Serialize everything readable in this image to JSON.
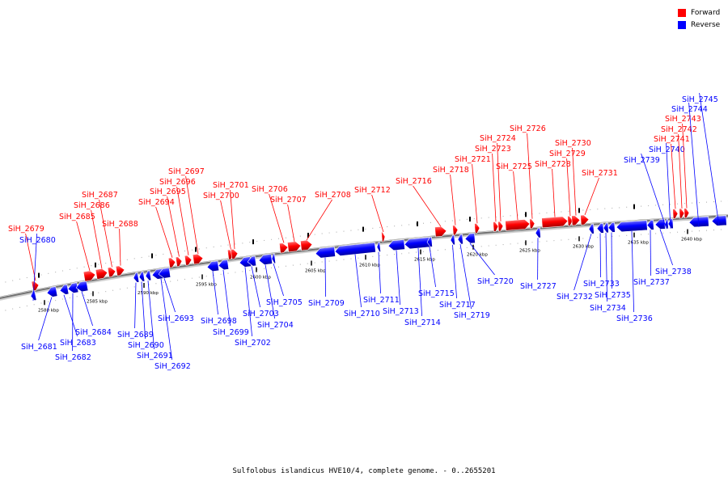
{
  "legend": {
    "forward_label": "Forward",
    "reverse_label": "Reverse",
    "forward_color": "#ff0000",
    "reverse_color": "#0000ff"
  },
  "caption": "Sulfolobus islandicus HVE10/4, complete genome. - 0..2655201",
  "ticks": [
    {
      "kbp": 2580,
      "label": "2580 kbp"
    },
    {
      "kbp": 2585,
      "label": "2585 kbp"
    },
    {
      "kbp": 2590,
      "label": "2590 kbp"
    },
    {
      "kbp": 2595,
      "label": "2595 kbp"
    },
    {
      "kbp": 2600,
      "label": "2600 kbp"
    },
    {
      "kbp": 2605,
      "label": "2605 kbp"
    },
    {
      "kbp": 2610,
      "label": "2610 kbp"
    },
    {
      "kbp": 2615,
      "label": "2615 kbp"
    },
    {
      "kbp": 2620,
      "label": "2620 kbp"
    },
    {
      "kbp": 2625,
      "label": "2625 kbp"
    },
    {
      "kbp": 2630,
      "label": "2630 kbp"
    },
    {
      "kbp": 2635,
      "label": "2635 kbp"
    },
    {
      "kbp": 2640,
      "label": "2640 kbp"
    }
  ],
  "genes": [
    {
      "name": "SiH_2679",
      "strand": "forward"
    },
    {
      "name": "SiH_2680",
      "strand": "reverse"
    },
    {
      "name": "SiH_2681",
      "strand": "reverse"
    },
    {
      "name": "SiH_2682",
      "strand": "reverse"
    },
    {
      "name": "SiH_2683",
      "strand": "reverse"
    },
    {
      "name": "SiH_2684",
      "strand": "reverse"
    },
    {
      "name": "SiH_2685",
      "strand": "forward"
    },
    {
      "name": "SiH_2686",
      "strand": "forward"
    },
    {
      "name": "SiH_2687",
      "strand": "forward"
    },
    {
      "name": "SiH_2688",
      "strand": "forward"
    },
    {
      "name": "SiH_2689",
      "strand": "reverse"
    },
    {
      "name": "SiH_2690",
      "strand": "reverse"
    },
    {
      "name": "SiH_2691",
      "strand": "reverse"
    },
    {
      "name": "SiH_2692",
      "strand": "reverse"
    },
    {
      "name": "SiH_2693",
      "strand": "reverse"
    },
    {
      "name": "SiH_2694",
      "strand": "forward"
    },
    {
      "name": "SiH_2695",
      "strand": "forward"
    },
    {
      "name": "SiH_2696",
      "strand": "forward"
    },
    {
      "name": "SiH_2697",
      "strand": "forward"
    },
    {
      "name": "SiH_2698",
      "strand": "reverse"
    },
    {
      "name": "SiH_2699",
      "strand": "reverse"
    },
    {
      "name": "SiH_2700",
      "strand": "forward"
    },
    {
      "name": "SiH_2701",
      "strand": "forward"
    },
    {
      "name": "SiH_2702",
      "strand": "reverse"
    },
    {
      "name": "SiH_2703",
      "strand": "reverse"
    },
    {
      "name": "SiH_2704",
      "strand": "reverse"
    },
    {
      "name": "SiH_2705",
      "strand": "reverse"
    },
    {
      "name": "SiH_2706",
      "strand": "forward"
    },
    {
      "name": "SiH_2707",
      "strand": "forward"
    },
    {
      "name": "SiH_2708",
      "strand": "forward"
    },
    {
      "name": "SiH_2709",
      "strand": "reverse"
    },
    {
      "name": "SiH_2710",
      "strand": "reverse"
    },
    {
      "name": "SiH_2711",
      "strand": "reverse"
    },
    {
      "name": "SiH_2712",
      "strand": "forward"
    },
    {
      "name": "SiH_2713",
      "strand": "reverse"
    },
    {
      "name": "SiH_2714",
      "strand": "reverse"
    },
    {
      "name": "SiH_2715",
      "strand": "reverse"
    },
    {
      "name": "SiH_2716",
      "strand": "forward"
    },
    {
      "name": "SiH_2717",
      "strand": "reverse"
    },
    {
      "name": "SiH_2718",
      "strand": "forward"
    },
    {
      "name": "SiH_2719",
      "strand": "reverse"
    },
    {
      "name": "SiH_2720",
      "strand": "reverse"
    },
    {
      "name": "SiH_2721",
      "strand": "forward"
    },
    {
      "name": "SiH_2723",
      "strand": "forward"
    },
    {
      "name": "SiH_2724",
      "strand": "forward"
    },
    {
      "name": "SiH_2725",
      "strand": "forward"
    },
    {
      "name": "SiH_2726",
      "strand": "forward"
    },
    {
      "name": "SiH_2727",
      "strand": "reverse"
    },
    {
      "name": "SiH_2728",
      "strand": "forward"
    },
    {
      "name": "SiH_2729",
      "strand": "forward"
    },
    {
      "name": "SiH_2730",
      "strand": "forward"
    },
    {
      "name": "SiH_2731",
      "strand": "forward"
    },
    {
      "name": "SiH_2732",
      "strand": "reverse"
    },
    {
      "name": "SiH_2733",
      "strand": "reverse"
    },
    {
      "name": "SiH_2734",
      "strand": "reverse"
    },
    {
      "name": "SiH_2735",
      "strand": "reverse"
    },
    {
      "name": "SiH_2736",
      "strand": "reverse"
    },
    {
      "name": "SiH_2737",
      "strand": "reverse"
    },
    {
      "name": "SiH_2738",
      "strand": "reverse"
    },
    {
      "name": "SiH_2739",
      "strand": "reverse"
    },
    {
      "name": "SiH_2740",
      "strand": "reverse"
    },
    {
      "name": "SiH_2741",
      "strand": "forward"
    },
    {
      "name": "SiH_2742",
      "strand": "forward"
    },
    {
      "name": "SiH_2743",
      "strand": "forward"
    },
    {
      "name": "SiH_2744",
      "strand": "reverse"
    },
    {
      "name": "SiH_2745",
      "strand": "reverse"
    }
  ]
}
